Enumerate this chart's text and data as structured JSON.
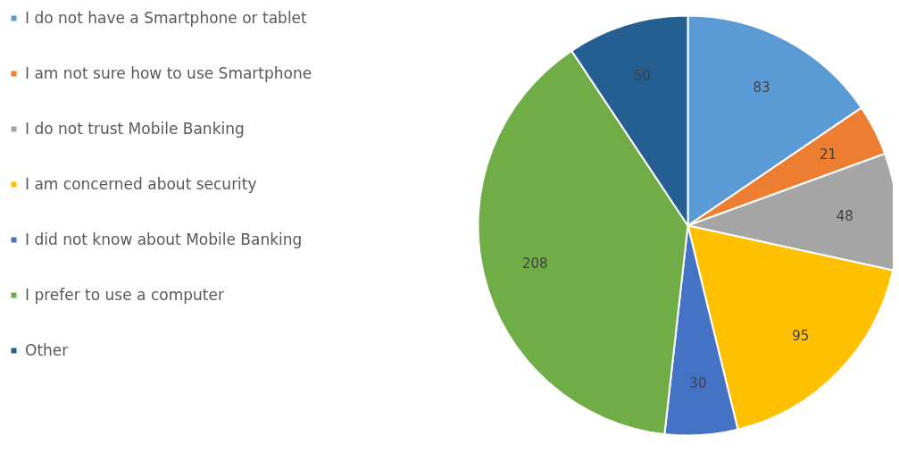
{
  "chart_data": {
    "type": "pie",
    "categories": [
      "I do not have a Smartphone or tablet",
      "I am not sure how to use Smartphone",
      "I do not trust Mobile Banking",
      "I am concerned about security",
      "I did not know about Mobile Banking",
      "I prefer to use a computer",
      "Other"
    ],
    "values": [
      83,
      21,
      48,
      95,
      30,
      208,
      50
    ],
    "colors": [
      "#5b9bd5",
      "#ed7d31",
      "#a5a5a5",
      "#ffc000",
      "#4472c4",
      "#70ad47",
      "#255e91"
    ],
    "data_labels": true,
    "legend": "left"
  }
}
